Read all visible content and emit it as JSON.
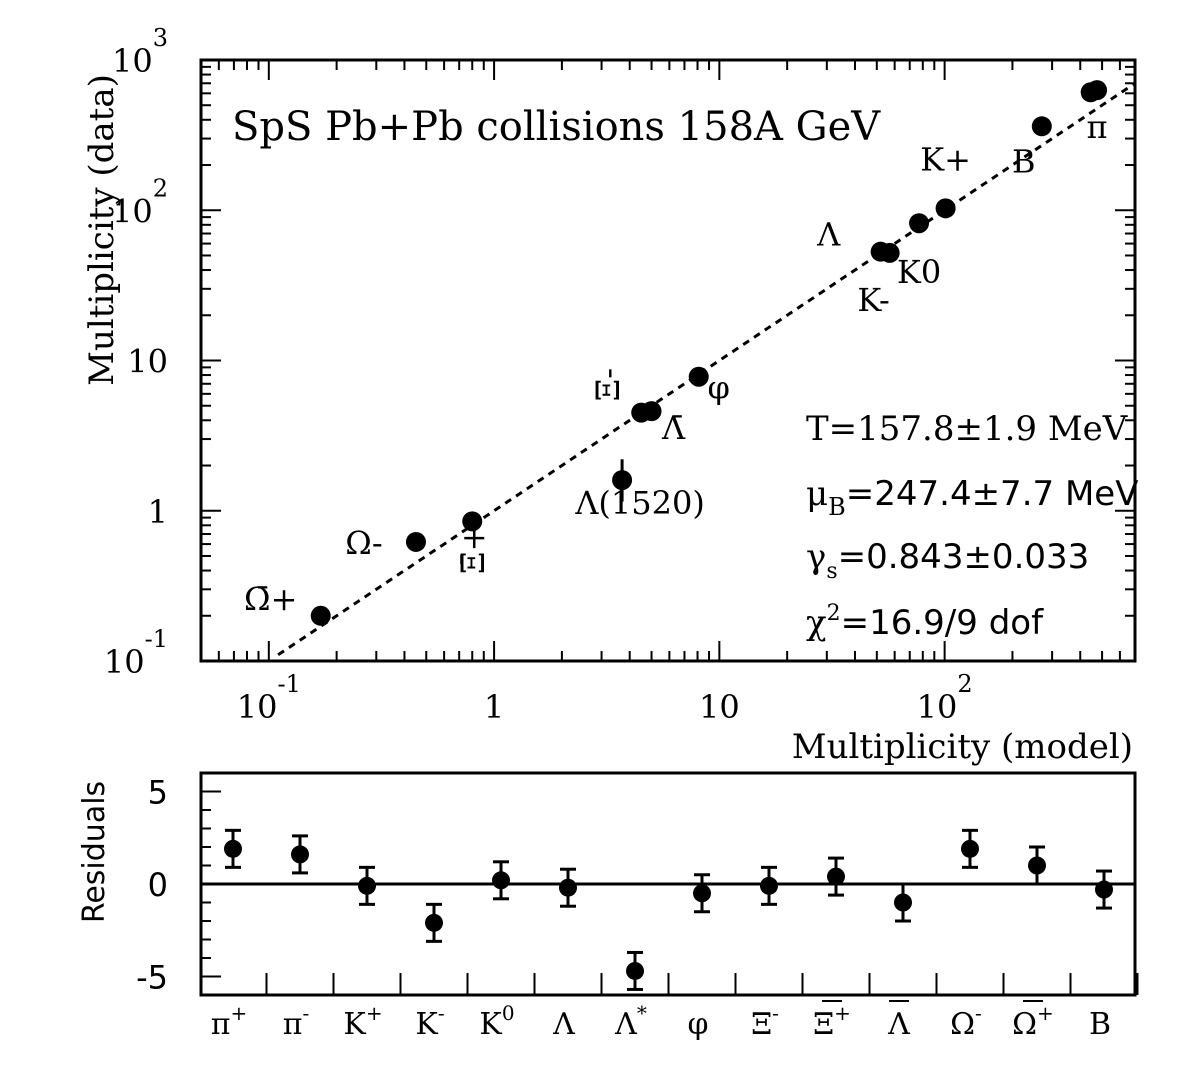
{
  "chart_data": [
    {
      "type": "scatter",
      "title": "SpS Pb+Pb collisions 158A GeV",
      "xlabel": "Multiplicity (model)",
      "ylabel": "Multiplicity (data)",
      "xscale": "log",
      "yscale": "log",
      "xlim": [
        0.05,
        700
      ],
      "ylim": [
        0.1,
        1000
      ],
      "x_ticks": [
        {
          "base": "10",
          "exp": "-1",
          "value": 0.1
        },
        {
          "base": "1",
          "exp": "",
          "value": 1
        },
        {
          "base": "10",
          "exp": "",
          "value": 10
        },
        {
          "base": "10",
          "exp": "2",
          "value": 100
        }
      ],
      "y_ticks": [
        {
          "base": "10",
          "exp": "-1",
          "value": 0.1
        },
        {
          "base": "1",
          "exp": "",
          "value": 1
        },
        {
          "base": "10",
          "exp": "",
          "value": 10
        },
        {
          "base": "10",
          "exp": "2",
          "value": 100
        },
        {
          "base": "10",
          "exp": "3",
          "value": 1000
        }
      ],
      "reference_line": "y = x",
      "points": [
        {
          "label": "Ω̄+",
          "x": 0.17,
          "y": 0.2
        },
        {
          "label": "Ω-",
          "x": 0.45,
          "y": 0.62
        },
        {
          "label": "Ξ̄+",
          "x": 0.8,
          "y": 0.85
        },
        {
          "label": "Λ(1520)",
          "x": 3.7,
          "y": 1.6,
          "err_low": 0.45,
          "err_high": 0.6
        },
        {
          "label": "Ξ-",
          "x": 4.5,
          "y": 4.5
        },
        {
          "label": "Λ̄",
          "x": 5.0,
          "y": 4.6
        },
        {
          "label": "φ",
          "x": 8.1,
          "y": 7.8
        },
        {
          "label": "Λ",
          "x": 52,
          "y": 53
        },
        {
          "label": "K-",
          "x": 57,
          "y": 52
        },
        {
          "label": "K0",
          "x": 77,
          "y": 82
        },
        {
          "label": "K+",
          "x": 101,
          "y": 103
        },
        {
          "label": "B",
          "x": 270,
          "y": 362
        },
        {
          "label": "π",
          "x": 445,
          "y": 610
        },
        {
          "label": "π",
          "x": 475,
          "y": 630
        }
      ],
      "annotations": {
        "T": "T=157.8±1.9 MeV",
        "mu_sym": "μ",
        "mu_sub": "B",
        "mu_val": "=247.4±7.7 MeV",
        "gamma_sym": "γ",
        "gamma_sub": "s",
        "gamma_val": "=0.843±0.033",
        "chi_sym": "χ",
        "chi_sup": "2",
        "chi_val": "=16.9/9 dof"
      }
    },
    {
      "type": "scatter",
      "ylabel": "Residuals",
      "ylim": [
        -6,
        6
      ],
      "y_ticks": [
        "5",
        "0",
        "-5"
      ],
      "categories": [
        {
          "base": "π",
          "sup": "+"
        },
        {
          "base": "π",
          "sup": "-"
        },
        {
          "base": "K",
          "sup": "+"
        },
        {
          "base": "K",
          "sup": "-"
        },
        {
          "base": "K",
          "sup": "0"
        },
        {
          "base": "Λ",
          "sup": ""
        },
        {
          "base": "Λ",
          "sup": "*"
        },
        {
          "base": "φ",
          "sup": ""
        },
        {
          "base": "Ξ",
          "sup": "-"
        },
        {
          "base": "Ξ",
          "sup": "+",
          "bar": true
        },
        {
          "base": "Λ",
          "sup": "",
          "bar": true
        },
        {
          "base": "Ω",
          "sup": "-"
        },
        {
          "base": "Ω",
          "sup": "+",
          "bar": true
        },
        {
          "base": "B",
          "sup": ""
        }
      ],
      "values": [
        1.9,
        1.6,
        -0.1,
        -2.1,
        0.2,
        -0.2,
        -4.7,
        -0.5,
        -0.1,
        0.4,
        -1.0,
        1.9,
        1.0,
        -0.3
      ],
      "errors": [
        1.0,
        1.0,
        1.0,
        1.0,
        1.0,
        1.0,
        1.0,
        1.0,
        1.0,
        1.0,
        1.0,
        1.0,
        1.0,
        1.0
      ]
    }
  ]
}
